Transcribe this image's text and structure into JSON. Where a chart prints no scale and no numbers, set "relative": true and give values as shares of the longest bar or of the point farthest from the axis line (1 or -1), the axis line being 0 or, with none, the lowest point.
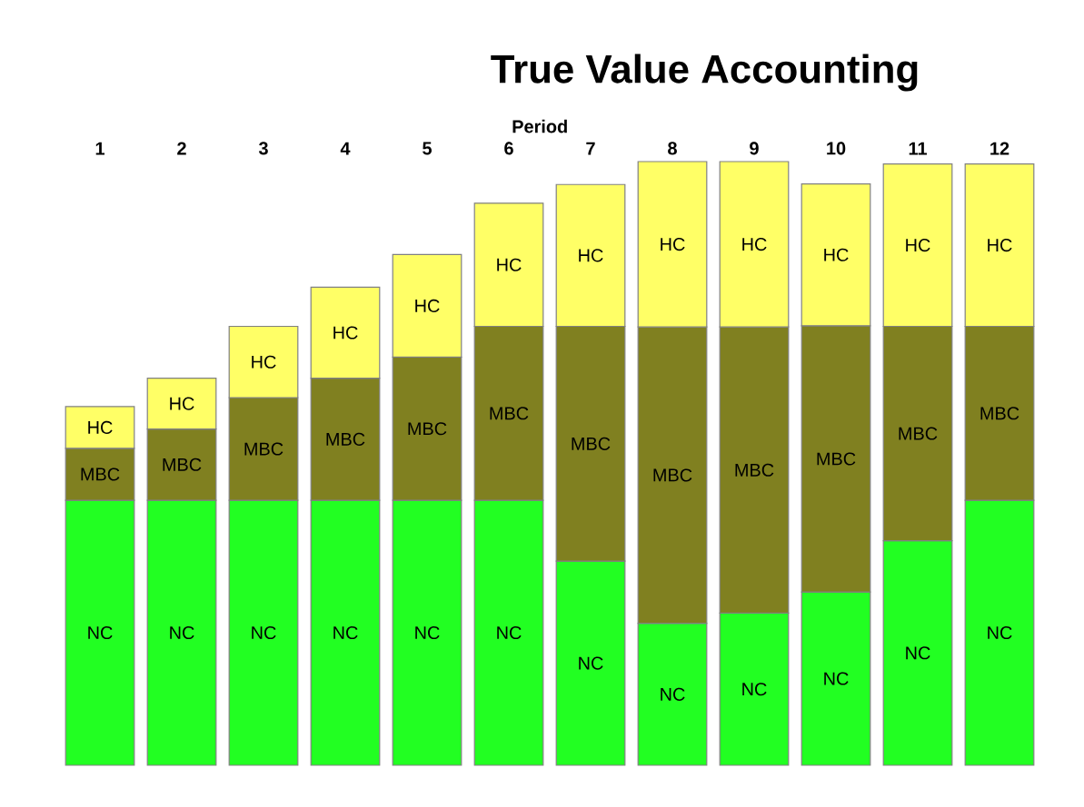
{
  "chart_data": {
    "type": "bar",
    "title": "True Value Accounting",
    "xlabel": "Period",
    "relative": true,
    "stacked": true,
    "categories": [
      "1",
      "2",
      "3",
      "4",
      "5",
      "6",
      "7",
      "8",
      "9",
      "10",
      "11",
      "12"
    ],
    "series": [
      {
        "name": "NC",
        "color": "#22ff22",
        "values": [
          0.439,
          0.439,
          0.439,
          0.439,
          0.439,
          0.439,
          0.338,
          0.235,
          0.252,
          0.287,
          0.372,
          0.439
        ]
      },
      {
        "name": "MBC",
        "color": "#808020",
        "values": [
          0.086,
          0.118,
          0.17,
          0.202,
          0.237,
          0.288,
          0.389,
          0.491,
          0.474,
          0.441,
          0.355,
          0.288
        ]
      },
      {
        "name": "HC",
        "color": "#ffff66",
        "values": [
          0.069,
          0.084,
          0.118,
          0.151,
          0.17,
          0.204,
          0.235,
          0.274,
          0.274,
          0.235,
          0.269,
          0.269
        ]
      }
    ]
  }
}
